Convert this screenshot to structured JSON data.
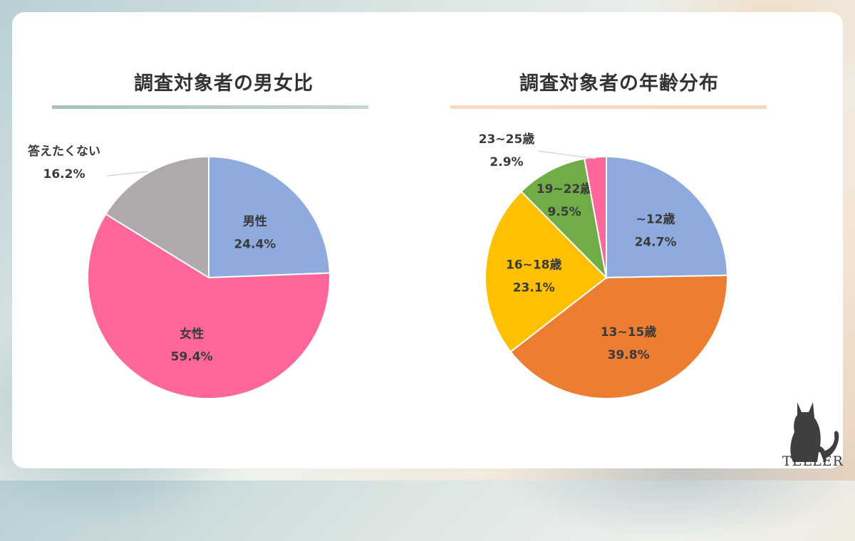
{
  "chart_data": [
    {
      "type": "pie",
      "title": "調査対象者の男女比",
      "start": "12 o'clock, clockwise",
      "slices": [
        {
          "label": "男性",
          "value": 24.4,
          "value_label": "24.4%",
          "color": "#8faadc"
        },
        {
          "label": "女性",
          "value": 59.4,
          "value_label": "59.4%",
          "color": "#ff6699"
        },
        {
          "label": "答えたくない",
          "value": 16.2,
          "value_label": "16.2%",
          "color": "#aeaaaa"
        }
      ]
    },
    {
      "type": "pie",
      "title": "調査対象者の年齢分布",
      "start": "12 o'clock, clockwise",
      "slices": [
        {
          "label": "~12歳",
          "value": 24.7,
          "value_label": "24.7%",
          "color": "#8faadc"
        },
        {
          "label": "13~15歳",
          "value": 39.8,
          "value_label": "39.8%",
          "color": "#ed7d31"
        },
        {
          "label": "16~18歳",
          "value": 23.1,
          "value_label": "23.1%",
          "color": "#ffc000"
        },
        {
          "label": "19~22歳",
          "value": 9.5,
          "value_label": "9.5%",
          "color": "#70ad47"
        },
        {
          "label": "23~25歳",
          "value": 2.9,
          "value_label": "2.9%",
          "color": "#ff6699"
        }
      ]
    }
  ],
  "logo": {
    "text": "TELLER",
    "icon": "cat-silhouette-icon"
  }
}
